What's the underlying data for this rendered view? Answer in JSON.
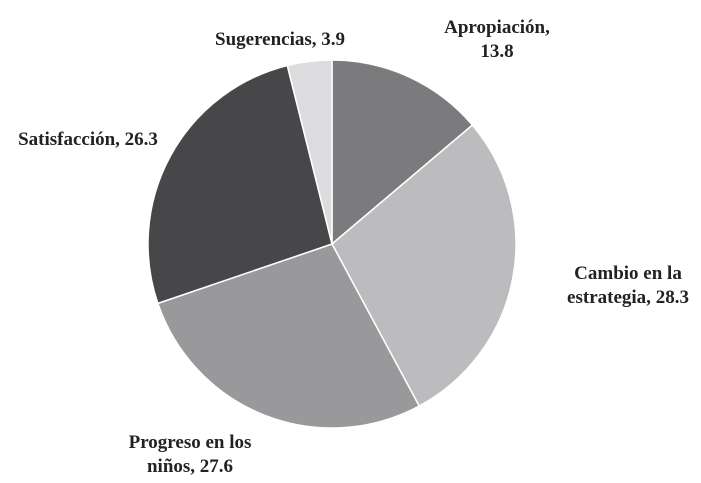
{
  "chart_data": {
    "type": "pie",
    "categories": [
      "Apropiación,",
      "Cambio en la estrategia,",
      "Progreso en los niños,",
      "Satisfacción,",
      "Sugerencias,"
    ],
    "values": [
      13.8,
      28.3,
      27.6,
      26.3,
      3.9
    ],
    "colors": [
      "#7b7b7d",
      "#bcbcbe",
      "#99999b",
      "#47474a",
      "#dcdcde"
    ]
  }
}
